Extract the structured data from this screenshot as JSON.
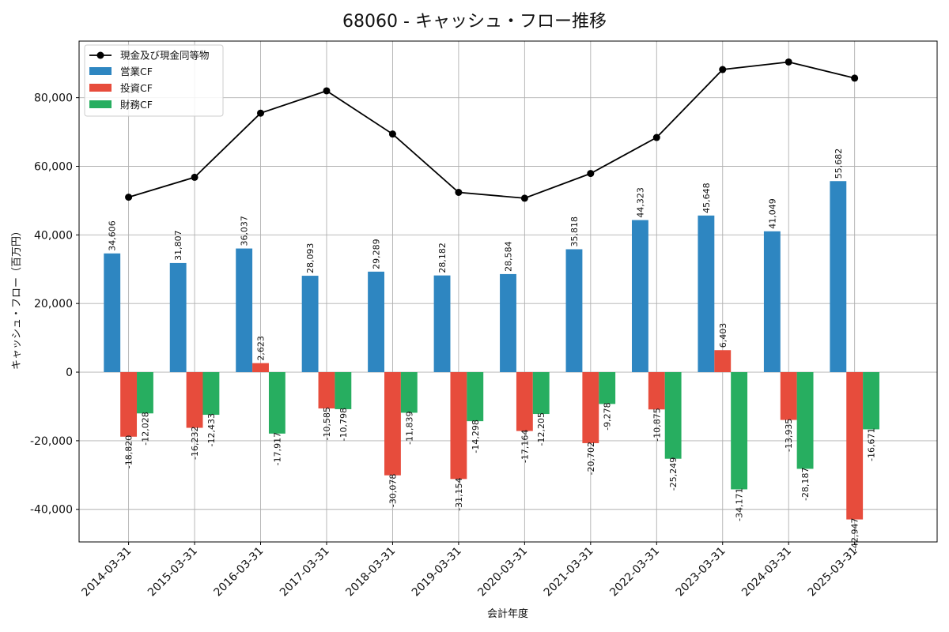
{
  "chart_data": {
    "type": "bar",
    "title": "68060 - キャッシュ・フロー推移",
    "xlabel": "会計年度",
    "ylabel": "キャッシュ・フロー（百万円）",
    "ylim": [
      -49500,
      96500
    ],
    "yticks": [
      -40000,
      -20000,
      0,
      20000,
      40000,
      60000,
      80000
    ],
    "ytick_labels": [
      "-40,000",
      "-20,000",
      "0",
      "20,000",
      "40,000",
      "60,000",
      "80,000"
    ],
    "grid": true,
    "legend_position": "top-left",
    "categories": [
      "2014-03-31",
      "2015-03-31",
      "2016-03-31",
      "2017-03-31",
      "2018-03-31",
      "2019-03-31",
      "2020-03-31",
      "2021-03-31",
      "2022-03-31",
      "2023-03-31",
      "2024-03-31",
      "2025-03-31"
    ],
    "series": [
      {
        "name": "営業CF",
        "kind": "bar",
        "color": "#2e86c1",
        "values": [
          34606,
          31807,
          36037,
          28093,
          29289,
          28182,
          28584,
          35818,
          44323,
          45648,
          41049,
          55682
        ],
        "labels": [
          "34,606",
          "31,807",
          "36,037",
          "28,093",
          "29,289",
          "28,182",
          "28,584",
          "35,818",
          "44,323",
          "45,648",
          "41,049",
          "55,682"
        ]
      },
      {
        "name": "投資CF",
        "kind": "bar",
        "color": "#e74c3c",
        "values": [
          -18820,
          -16232,
          2623,
          -10585,
          -30078,
          -31154,
          -17164,
          -20702,
          -10875,
          6403,
          -13935,
          -42947
        ],
        "labels": [
          "-18,820",
          "-16,232",
          "2,623",
          "-10,585",
          "-30,078",
          "-31,154",
          "-17,164",
          "-20,702",
          "-10,875",
          "6,403",
          "-13,935",
          "-42,947"
        ]
      },
      {
        "name": "財務CF",
        "kind": "bar",
        "color": "#27ae60",
        "values": [
          -12028,
          -12433,
          -17917,
          -10798,
          -11839,
          -14298,
          -12205,
          -9278,
          -25249,
          -34171,
          -28187,
          -16671
        ],
        "labels": [
          "-12,028",
          "-12,433",
          "-17,917",
          "-10,798",
          "-11,839",
          "-14,298",
          "-12,205",
          "-9,278",
          "-25,249",
          "-34,171",
          "-28,187",
          "-16,671"
        ]
      },
      {
        "name": "現金及び現金同等物",
        "kind": "line",
        "color": "#000000",
        "values": [
          51000,
          56800,
          75500,
          82000,
          69400,
          52400,
          50700,
          57900,
          68400,
          88200,
          90400,
          85700
        ]
      }
    ]
  }
}
